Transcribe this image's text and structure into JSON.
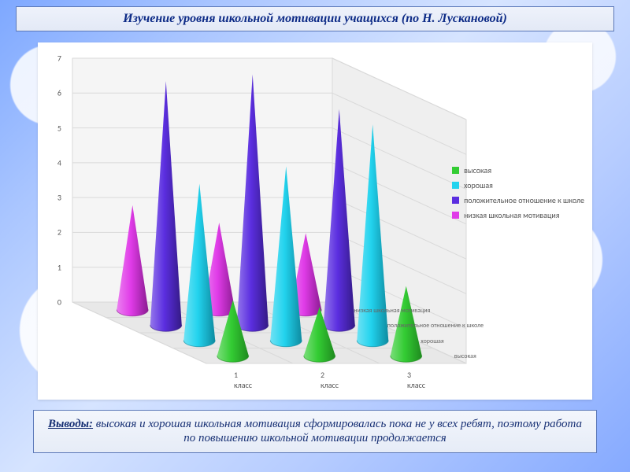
{
  "title": "Изучение уровня школьной мотивации учащихся (по Н. Лускановой)",
  "conclusion_label": "Выводы:",
  "conclusion_text": " высокая и хорошая школьная мотивация сформировалась пока не у всех ребят, поэтому работа по повышению школьной мотивации продолжается",
  "chart": {
    "type": "3d-cone",
    "background_color": "#ffffff",
    "ylim": [
      0,
      7
    ],
    "ytick_step": 1,
    "y_ticks": [
      "0",
      "1",
      "2",
      "3",
      "4",
      "5",
      "6",
      "7"
    ],
    "x_categories": [
      "1 класс",
      "2 класс",
      "3 класс"
    ],
    "depth_categories": [
      "высокая",
      "хорошая",
      "положительное отношение к школе",
      "низкая школьная мотивация"
    ],
    "series": [
      {
        "name": "высокая",
        "color": "#33cc33",
        "shadow": "#1f8a1f"
      },
      {
        "name": "хорошая",
        "color": "#22d3ee",
        "shadow": "#0e8ba0"
      },
      {
        "name": "положительное отношение к школе",
        "color": "#5b2ee0",
        "shadow": "#341a85"
      },
      {
        "name": "низкая школьная мотивация",
        "color": "#e03be8",
        "shadow": "#8b1c91"
      }
    ],
    "values": [
      [
        1.6,
        1.4,
        2.0
      ],
      [
        4.5,
        5.0,
        6.2
      ],
      [
        7.0,
        7.2,
        6.2
      ],
      [
        3.0,
        2.5,
        2.2
      ]
    ],
    "axis_fontsize": 10,
    "axis_font": "Calibri",
    "grid_color": "#d9d9d9",
    "wall_color": "#f2f2f2",
    "floor_color": "#e8e8e8",
    "cone_base_rx": 20,
    "cone_base_ry": 8
  },
  "legend": {
    "items": [
      {
        "label": "высокая",
        "color": "#33cc33"
      },
      {
        "label": "хорошая",
        "color": "#22d3ee"
      },
      {
        "label": "положительное отношение к школе",
        "color": "#5b2ee0"
      },
      {
        "label": "низкая школьная мотивация",
        "color": "#e03be8"
      }
    ]
  },
  "colors": {
    "title_text": "#0c2a86",
    "title_border": "#5b78b8",
    "conclusion_text": "#173074"
  }
}
